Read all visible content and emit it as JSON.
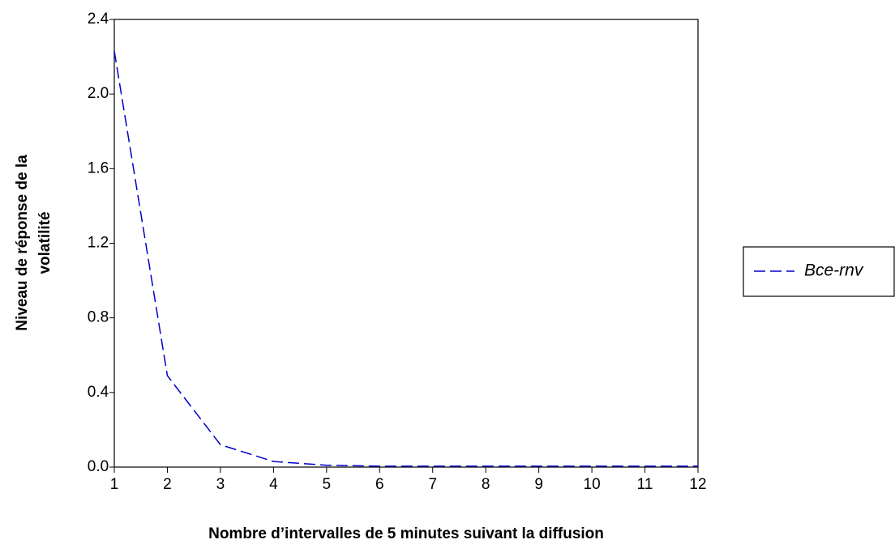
{
  "chart_data": {
    "type": "line",
    "x_label": "Nombre d’intervalles de 5 minutes suivant la diffusion",
    "y_label": [
      "Niveau de réponse de la",
      "volatilité"
    ],
    "x": [
      1,
      2,
      3,
      4,
      5,
      6,
      7,
      8,
      9,
      10,
      11,
      12
    ],
    "series": [
      {
        "name": "Bce-rnv",
        "color": "#0000cc",
        "values": [
          2.23,
          0.49,
          0.12,
          0.03,
          0.01,
          0.005,
          0.005,
          0.005,
          0.005,
          0.005,
          0.005,
          0.005
        ]
      }
    ],
    "xlim": [
      1,
      12
    ],
    "xticks": [
      1,
      2,
      3,
      4,
      5,
      6,
      7,
      8,
      9,
      10,
      11,
      12
    ],
    "ylim": [
      0,
      2.4
    ],
    "yticks": [
      {
        "value": 0,
        "label": "0.0"
      },
      0.4,
      0.8,
      1.2,
      1.6,
      {
        "value": 2,
        "label": "2.0"
      },
      2.4
    ],
    "legend": "right"
  }
}
